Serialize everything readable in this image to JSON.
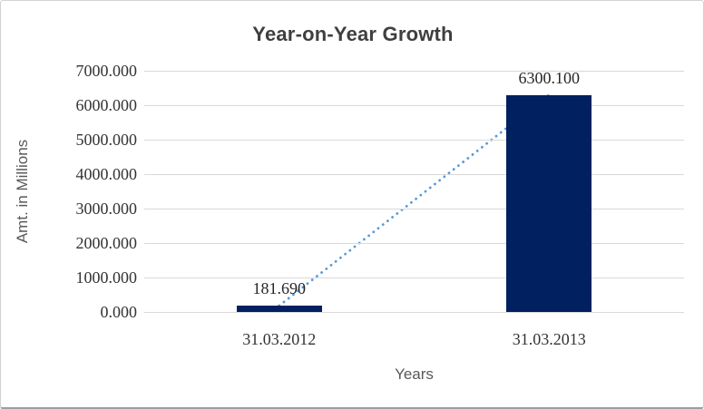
{
  "title": "Year-on-Year Growth",
  "y_axis_title": "Amt. in Millions",
  "x_axis_title": "Years",
  "chart_data": {
    "type": "bar",
    "title": "Year-on-Year Growth",
    "xlabel": "Years",
    "ylabel": "Amt. in Millions",
    "categories": [
      "31.03.2012",
      "31.03.2013"
    ],
    "values": [
      181.69,
      6300.1
    ],
    "data_labels": [
      "181.690",
      "6300.100"
    ],
    "ylim": [
      0,
      7000
    ],
    "ytick_step": 1000,
    "ytick_labels": [
      "0.000",
      "1000.000",
      "2000.000",
      "3000.000",
      "4000.000",
      "5000.000",
      "6000.000",
      "7000.000"
    ],
    "grid": true,
    "legend": false,
    "trendline": {
      "style": "dotted",
      "color": "#5B9BD5",
      "points": [
        [
          0,
          181.69
        ],
        [
          1,
          6300.1
        ]
      ]
    },
    "colors": {
      "bar_fill": "#002060",
      "gridline": "#D9D9D9",
      "trend": "#5B9BD5",
      "title_text": "#3F3F3F",
      "tick_text": "#333333",
      "axis_title_text": "#595959"
    }
  }
}
